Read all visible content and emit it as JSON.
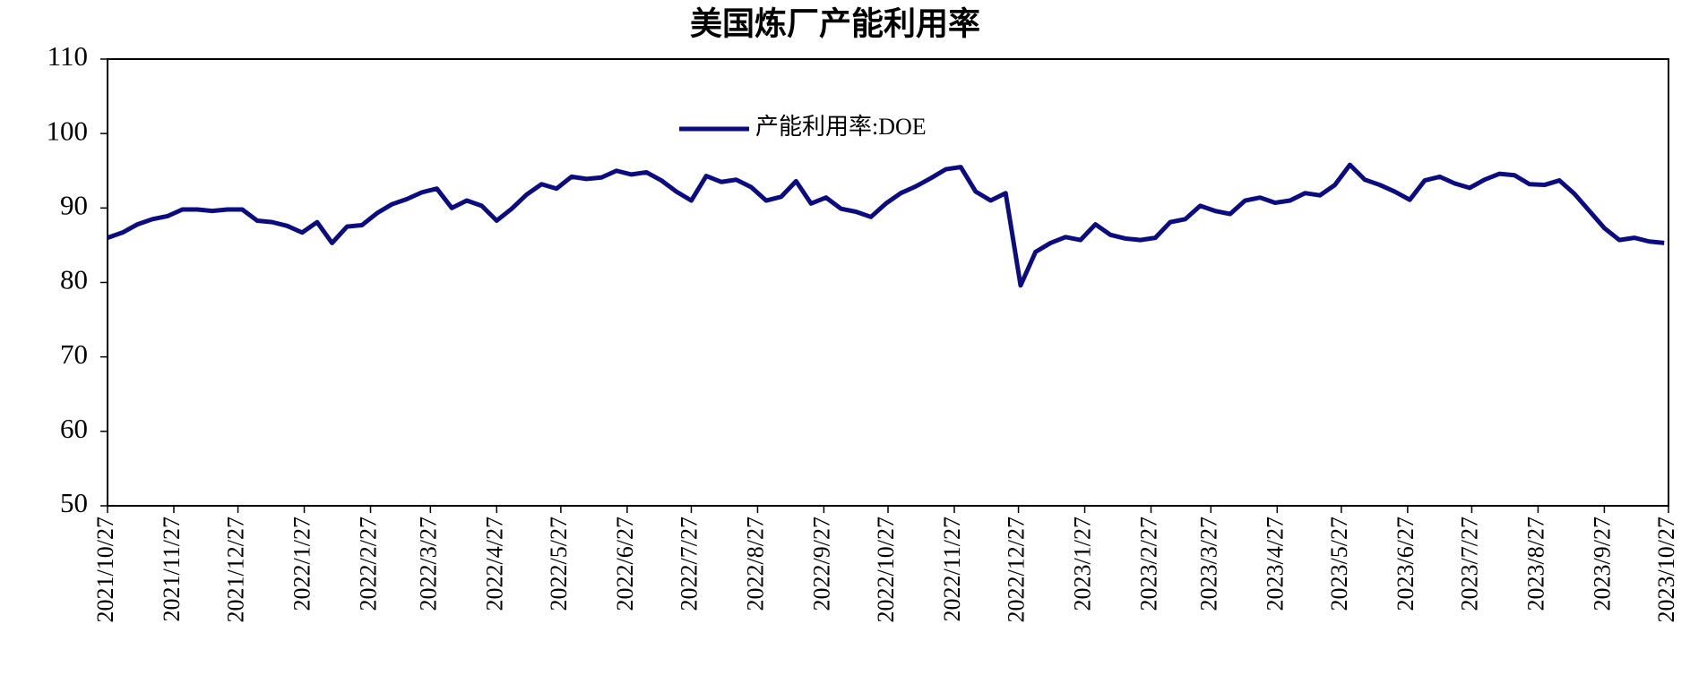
{
  "chart_data": {
    "type": "line",
    "title": "美国炼厂产能利用率",
    "x": [
      "2021/10/27",
      "2021/11/3",
      "2021/11/10",
      "2021/11/17",
      "2021/11/24",
      "2021/12/1",
      "2021/12/8",
      "2021/12/15",
      "2021/12/22",
      "2021/12/29",
      "2022/1/5",
      "2022/1/12",
      "2022/1/19",
      "2022/1/26",
      "2022/2/2",
      "2022/2/9",
      "2022/2/16",
      "2022/2/23",
      "2022/3/2",
      "2022/3/9",
      "2022/3/16",
      "2022/3/23",
      "2022/3/30",
      "2022/4/6",
      "2022/4/13",
      "2022/4/20",
      "2022/4/27",
      "2022/5/4",
      "2022/5/11",
      "2022/5/18",
      "2022/5/25",
      "2022/6/1",
      "2022/6/8",
      "2022/6/15",
      "2022/6/22",
      "2022/6/29",
      "2022/7/6",
      "2022/7/13",
      "2022/7/20",
      "2022/7/27",
      "2022/8/3",
      "2022/8/10",
      "2022/8/17",
      "2022/8/24",
      "2022/8/31",
      "2022/9/7",
      "2022/9/14",
      "2022/9/21",
      "2022/9/28",
      "2022/10/5",
      "2022/10/12",
      "2022/10/19",
      "2022/10/26",
      "2022/11/2",
      "2022/11/9",
      "2022/11/16",
      "2022/11/23",
      "2022/11/30",
      "2022/12/7",
      "2022/12/14",
      "2022/12/21",
      "2022/12/28",
      "2023/1/4",
      "2023/1/11",
      "2023/1/18",
      "2023/1/25",
      "2023/2/1",
      "2023/2/8",
      "2023/2/15",
      "2023/2/22",
      "2023/3/1",
      "2023/3/8",
      "2023/3/15",
      "2023/3/22",
      "2023/3/29",
      "2023/4/5",
      "2023/4/12",
      "2023/4/19",
      "2023/4/26",
      "2023/5/3",
      "2023/5/10",
      "2023/5/17",
      "2023/5/24",
      "2023/5/31",
      "2023/6/7",
      "2023/6/14",
      "2023/6/21",
      "2023/6/28",
      "2023/7/5",
      "2023/7/12",
      "2023/7/19",
      "2023/7/26",
      "2023/8/2",
      "2023/8/9",
      "2023/8/16",
      "2023/8/23",
      "2023/8/30",
      "2023/9/6",
      "2023/9/13",
      "2023/9/20",
      "2023/9/27",
      "2023/10/4",
      "2023/10/11",
      "2023/10/18",
      "2023/10/25"
    ],
    "series": [
      {
        "name": "产能利用率:DOE",
        "color": "#0c0c82",
        "values": [
          86.0,
          86.7,
          87.8,
          88.5,
          88.9,
          89.8,
          89.8,
          89.6,
          89.8,
          89.8,
          88.3,
          88.1,
          87.6,
          86.7,
          88.1,
          85.3,
          87.5,
          87.7,
          89.3,
          90.5,
          91.2,
          92.1,
          92.6,
          90.0,
          91.0,
          90.3,
          88.3,
          89.9,
          91.8,
          93.2,
          92.6,
          94.2,
          93.9,
          94.1,
          95.0,
          94.5,
          94.8,
          93.7,
          92.2,
          91.0,
          94.3,
          93.5,
          93.8,
          92.8,
          91.0,
          91.5,
          93.6,
          90.6,
          91.4,
          89.9,
          89.5,
          88.8,
          90.6,
          92.0,
          92.9,
          94.0,
          95.2,
          95.5,
          92.2,
          91.0,
          92.0,
          79.6,
          84.1,
          85.3,
          86.1,
          85.7,
          87.8,
          86.4,
          85.9,
          85.7,
          86.0,
          88.1,
          88.5,
          90.3,
          89.6,
          89.2,
          91.0,
          91.4,
          90.7,
          91.0,
          92.0,
          91.7,
          93.1,
          95.8,
          93.8,
          93.1,
          92.2,
          91.1,
          93.7,
          94.2,
          93.3,
          92.7,
          93.8,
          94.6,
          94.4,
          93.2,
          93.1,
          93.7,
          91.9,
          89.6,
          87.3,
          85.7,
          86.0,
          85.5,
          85.3
        ]
      }
    ],
    "xlim": [
      "2021/10/27",
      "2023/10/27"
    ],
    "xticks": [
      "2021/10/27",
      "2021/11/27",
      "2021/12/27",
      "2022/1/27",
      "2022/2/27",
      "2022/3/27",
      "2022/4/27",
      "2022/5/27",
      "2022/6/27",
      "2022/7/27",
      "2022/8/27",
      "2022/9/27",
      "2022/10/27",
      "2022/11/27",
      "2022/12/27",
      "2023/1/27",
      "2023/2/27",
      "2023/3/27",
      "2023/4/27",
      "2023/5/27",
      "2023/6/27",
      "2023/7/27",
      "2023/8/27",
      "2023/9/27",
      "2023/10/27"
    ],
    "ylim": [
      50,
      110
    ],
    "yticks": [
      50,
      60,
      70,
      80,
      90,
      100,
      110
    ],
    "legend": "top"
  }
}
